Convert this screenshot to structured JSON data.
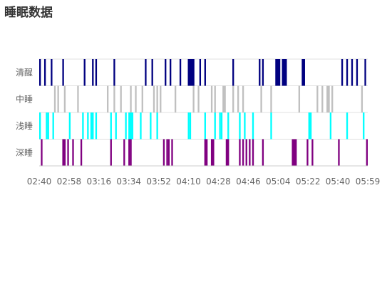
{
  "title": "睡眠数据",
  "chart_data": {
    "type": "timeline",
    "title": "睡眠数据",
    "x_start": "02:40",
    "x_end": "05:59",
    "x_tick_labels": [
      "02:40",
      "02:58",
      "03:16",
      "03:34",
      "03:52",
      "04:10",
      "04:28",
      "04:46",
      "05:04",
      "05:22",
      "05:40",
      "05:59"
    ],
    "lanes": [
      {
        "name": "清醒",
        "color": "#000080",
        "segments": [
          [
            "02:40",
            "02:41"
          ],
          [
            "02:43",
            "02:44"
          ],
          [
            "02:47",
            "02:48"
          ],
          [
            "02:54",
            "02:55"
          ],
          [
            "03:07",
            "03:08"
          ],
          [
            "03:12",
            "03:13"
          ],
          [
            "03:14",
            "03:15"
          ],
          [
            "03:25",
            "03:26"
          ],
          [
            "03:44",
            "03:45"
          ],
          [
            "03:48",
            "03:49"
          ],
          [
            "03:56",
            "03:57"
          ],
          [
            "03:59",
            "04:00"
          ],
          [
            "04:05",
            "04:06"
          ],
          [
            "04:10",
            "04:14"
          ],
          [
            "04:17",
            "04:18"
          ],
          [
            "04:20",
            "04:21"
          ],
          [
            "04:37",
            "04:38"
          ],
          [
            "04:53",
            "04:54"
          ],
          [
            "04:55",
            "04:56"
          ],
          [
            "05:03",
            "05:06"
          ],
          [
            "05:07",
            "05:10"
          ],
          [
            "05:19",
            "05:21"
          ],
          [
            "05:43",
            "05:44"
          ],
          [
            "05:46",
            "05:47"
          ],
          [
            "05:49",
            "05:50"
          ],
          [
            "05:52",
            "05:53"
          ],
          [
            "05:57",
            "05:58"
          ]
        ]
      },
      {
        "name": "中睡",
        "color": "#c0c0c0",
        "segments": [
          [
            "02:49",
            "02:50"
          ],
          [
            "02:51",
            "02:52"
          ],
          [
            "02:55",
            "02:56"
          ],
          [
            "03:03",
            "03:04"
          ],
          [
            "03:21",
            "03:22"
          ],
          [
            "03:25",
            "03:26"
          ],
          [
            "03:29",
            "03:30"
          ],
          [
            "03:35",
            "03:36"
          ],
          [
            "03:38",
            "03:39"
          ],
          [
            "03:42",
            "03:43"
          ],
          [
            "03:49",
            "03:50"
          ],
          [
            "03:51",
            "03:52"
          ],
          [
            "03:53",
            "03:54"
          ],
          [
            "04:02",
            "04:03"
          ],
          [
            "04:13",
            "04:14"
          ],
          [
            "04:16",
            "04:17"
          ],
          [
            "04:24",
            "04:25"
          ],
          [
            "04:26",
            "04:27"
          ],
          [
            "04:31",
            "04:32"
          ],
          [
            "04:32",
            "04:33"
          ],
          [
            "04:37",
            "04:38"
          ],
          [
            "04:40",
            "04:41"
          ],
          [
            "04:43",
            "04:44"
          ],
          [
            "04:54",
            "04:55"
          ],
          [
            "05:00",
            "05:01"
          ],
          [
            "05:17",
            "05:18"
          ],
          [
            "05:28",
            "05:29"
          ],
          [
            "05:31",
            "05:32"
          ],
          [
            "05:34",
            "05:36"
          ],
          [
            "05:37",
            "05:38"
          ],
          [
            "05:55",
            "05:56"
          ]
        ]
      },
      {
        "name": "浅睡",
        "color": "#00ffff",
        "segments": [
          [
            "02:40",
            "02:41"
          ],
          [
            "02:44",
            "02:45"
          ],
          [
            "02:45",
            "02:46"
          ],
          [
            "02:48",
            "02:49"
          ],
          [
            "02:58",
            "02:59"
          ],
          [
            "03:06",
            "03:07"
          ],
          [
            "03:09",
            "03:10"
          ],
          [
            "03:11",
            "03:13"
          ],
          [
            "03:14",
            "03:15"
          ],
          [
            "03:23",
            "03:24"
          ],
          [
            "03:26",
            "03:27"
          ],
          [
            "03:32",
            "03:33"
          ],
          [
            "03:34",
            "03:37"
          ],
          [
            "03:41",
            "03:42"
          ],
          [
            "03:47",
            "03:48"
          ],
          [
            "03:51",
            "03:52"
          ],
          [
            "04:10",
            "04:11"
          ],
          [
            "04:11",
            "04:12"
          ],
          [
            "04:20",
            "04:21"
          ],
          [
            "04:26",
            "04:27"
          ],
          [
            "04:29",
            "04:30"
          ],
          [
            "04:30",
            "04:31"
          ],
          [
            "04:34",
            "04:35"
          ],
          [
            "04:41",
            "04:42"
          ],
          [
            "04:44",
            "04:45"
          ],
          [
            "04:49",
            "04:50"
          ],
          [
            "05:00",
            "05:01"
          ],
          [
            "05:23",
            "05:25"
          ],
          [
            "05:36",
            "05:37"
          ],
          [
            "05:46",
            "05:47"
          ],
          [
            "05:56",
            "05:57"
          ]
        ]
      },
      {
        "name": "深睡",
        "color": "#800080",
        "segments": [
          [
            "02:41",
            "02:42"
          ],
          [
            "02:54",
            "02:56"
          ],
          [
            "02:57",
            "02:58"
          ],
          [
            "03:00",
            "03:01"
          ],
          [
            "03:05",
            "03:06"
          ],
          [
            "03:23",
            "03:24"
          ],
          [
            "03:31",
            "03:32"
          ],
          [
            "03:34",
            "03:35"
          ],
          [
            "03:35",
            "03:36"
          ],
          [
            "03:55",
            "03:56"
          ],
          [
            "03:57",
            "03:58"
          ],
          [
            "03:58",
            "03:59"
          ],
          [
            "04:00",
            "04:01"
          ],
          [
            "04:20",
            "04:22"
          ],
          [
            "04:24",
            "04:26"
          ],
          [
            "04:33",
            "04:35"
          ],
          [
            "04:41",
            "04:42"
          ],
          [
            "04:43",
            "04:44"
          ],
          [
            "04:45",
            "04:46"
          ],
          [
            "04:47",
            "04:48"
          ],
          [
            "04:49",
            "04:50"
          ],
          [
            "04:55",
            "04:56"
          ],
          [
            "05:13",
            "05:16"
          ],
          [
            "05:22",
            "05:23"
          ],
          [
            "05:25",
            "05:26"
          ],
          [
            "05:41",
            "05:42"
          ],
          [
            "05:58",
            "05:59"
          ]
        ]
      }
    ],
    "grid": true,
    "legend": false
  }
}
